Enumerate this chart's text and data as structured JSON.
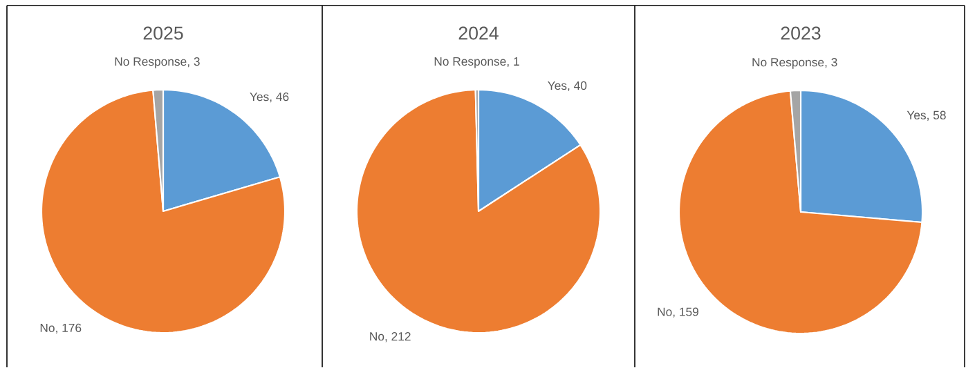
{
  "chart_data": [
    {
      "type": "pie",
      "title": "2025",
      "categories": [
        "Yes",
        "No",
        "No Response"
      ],
      "values": [
        46,
        176,
        3
      ],
      "colors": [
        "#5b9bd5",
        "#ed7d31",
        "#a5a5a5"
      ],
      "value_labels": [
        ", 46",
        ", 176",
        ", 3"
      ]
    },
    {
      "type": "pie",
      "title": "2024",
      "categories": [
        "Yes",
        "No",
        "No Response"
      ],
      "values": [
        40,
        212,
        1
      ],
      "colors": [
        "#5b9bd5",
        "#ed7d31",
        "#a5a5a5"
      ],
      "value_labels": [
        ", 40",
        ", 212",
        ", 1"
      ]
    },
    {
      "type": "pie",
      "title": "2023",
      "categories": [
        "Yes",
        "No",
        "No Response"
      ],
      "values": [
        58,
        159,
        3
      ],
      "colors": [
        "#5b9bd5",
        "#ed7d31",
        "#a5a5a5"
      ],
      "value_labels": [
        ", 58",
        ", 159",
        ", 3"
      ]
    }
  ]
}
